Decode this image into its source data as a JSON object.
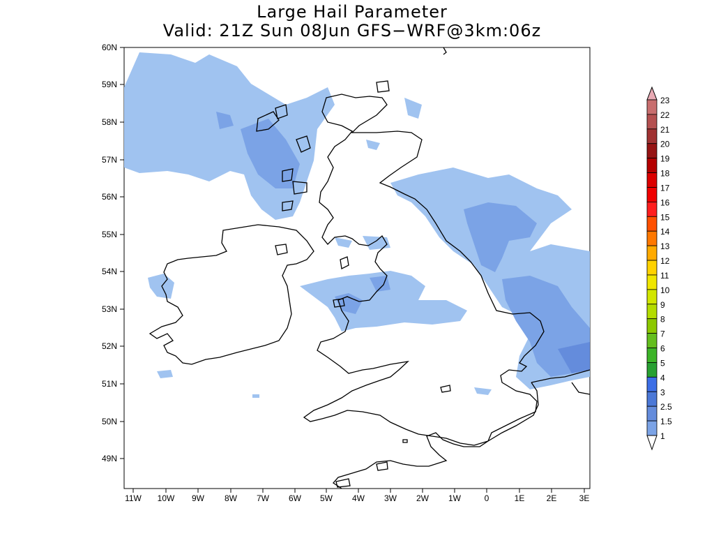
{
  "title": "Large Hail Parameter",
  "subtitle": "Valid: 21Z Sun 08Jun GFS−WRF@3km:06z",
  "map": {
    "lat_labels": [
      "60N",
      "59N",
      "58N",
      "57N",
      "56N",
      "55N",
      "54N",
      "53N",
      "52N",
      "51N",
      "50N",
      "49N"
    ],
    "lon_labels": [
      "11W",
      "10W",
      "9W",
      "8W",
      "7W",
      "6W",
      "5W",
      "4W",
      "3W",
      "2W",
      "1W",
      "0",
      "1E",
      "2E",
      "3E"
    ],
    "extent": {
      "lon_min": -11.2,
      "lon_max": 3.2,
      "lat_min": 48.3,
      "lat_max": 60.0
    }
  },
  "legend": {
    "labels": [
      "23",
      "22",
      "21",
      "20",
      "19",
      "18",
      "17",
      "16",
      "15",
      "14",
      "13",
      "12",
      "11",
      "10",
      "9",
      "8",
      "7",
      "6",
      "5",
      "4",
      "3",
      "2.5",
      "1.5",
      "1"
    ],
    "colors": [
      "#d88c8c",
      "#c86e6e",
      "#b45050",
      "#a03232",
      "#961414",
      "#b40000",
      "#dc0000",
      "#f00000",
      "#ff1e1e",
      "#ff5000",
      "#ff7800",
      "#ffaa00",
      "#ffd200",
      "#f0e600",
      "#d2e600",
      "#b4dc00",
      "#8cc800",
      "#64be1e",
      "#3cb428",
      "#28a032",
      "#3c6ee6",
      "#4b78d7",
      "#648cdc",
      "#7ba3e6",
      "#a0c3f0"
    ],
    "arrow_top_color": "#e8aab4",
    "arrow_bottom_color": "#ffffff"
  }
}
